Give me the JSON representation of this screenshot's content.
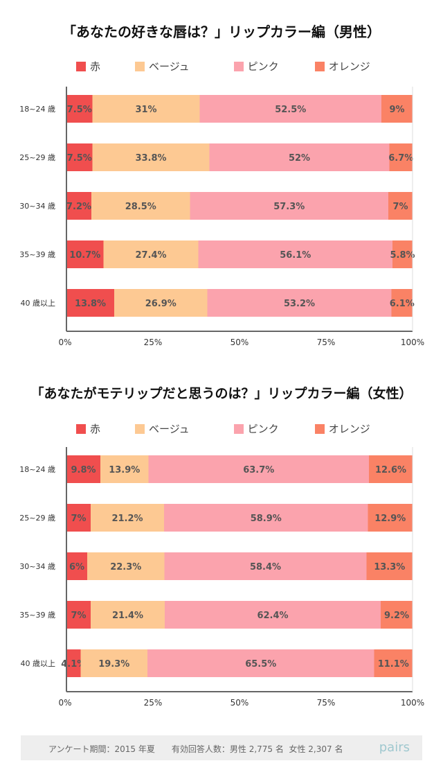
{
  "chart_data": [
    {
      "type": "bar",
      "stacked": "percent",
      "orientation": "horizontal",
      "title": "「あなたの好きな唇は？」リップカラー編（男性）",
      "categories": [
        "18~24 歳",
        "25~29 歳",
        "30~34 歳",
        "35~39 歳",
        "40 歳以上"
      ],
      "series": [
        {
          "name": "赤",
          "color": "#f04e4e",
          "values": [
            7.5,
            7.5,
            7.2,
            10.7,
            13.8
          ]
        },
        {
          "name": "ベージュ",
          "color": "#fdc993",
          "values": [
            31,
            33.8,
            28.5,
            27.4,
            26.9
          ]
        },
        {
          "name": "ピンク",
          "color": "#fba3ad",
          "values": [
            52.5,
            52,
            57.3,
            56.1,
            53.2
          ]
        },
        {
          "name": "オレンジ",
          "color": "#fa8265",
          "values": [
            9,
            6.7,
            7,
            5.8,
            6.1
          ]
        }
      ],
      "xlim": [
        0,
        100
      ],
      "xticks": [
        "0%",
        "25%",
        "50%",
        "75%",
        "100%"
      ],
      "grid": false,
      "legend": "top"
    },
    {
      "type": "bar",
      "stacked": "percent",
      "orientation": "horizontal",
      "title": "「あなたがモテリップだと思うのは？」リップカラー編（女性）",
      "categories": [
        "18~24 歳",
        "25~29 歳",
        "30~34 歳",
        "35~39 歳",
        "40 歳以上"
      ],
      "series": [
        {
          "name": "赤",
          "color": "#f04e4e",
          "values": [
            9.8,
            7,
            6,
            7,
            4.1
          ]
        },
        {
          "name": "ベージュ",
          "color": "#fdc993",
          "values": [
            13.9,
            21.2,
            22.3,
            21.4,
            19.3
          ]
        },
        {
          "name": "ピンク",
          "color": "#fba3ad",
          "values": [
            63.7,
            58.9,
            58.4,
            62.4,
            65.5
          ]
        },
        {
          "name": "オレンジ",
          "color": "#fa8265",
          "values": [
            12.6,
            12.9,
            13.3,
            9.2,
            11.1
          ]
        }
      ],
      "xlim": [
        0,
        100
      ],
      "xticks": [
        "0%",
        "25%",
        "50%",
        "75%",
        "100%"
      ],
      "grid": false,
      "legend": "top"
    }
  ],
  "footer": {
    "text": "アンケート期間：2015 年夏　　有効回答人数：男性 2,775 名  女性 2,307 名",
    "logo": "pairs"
  }
}
